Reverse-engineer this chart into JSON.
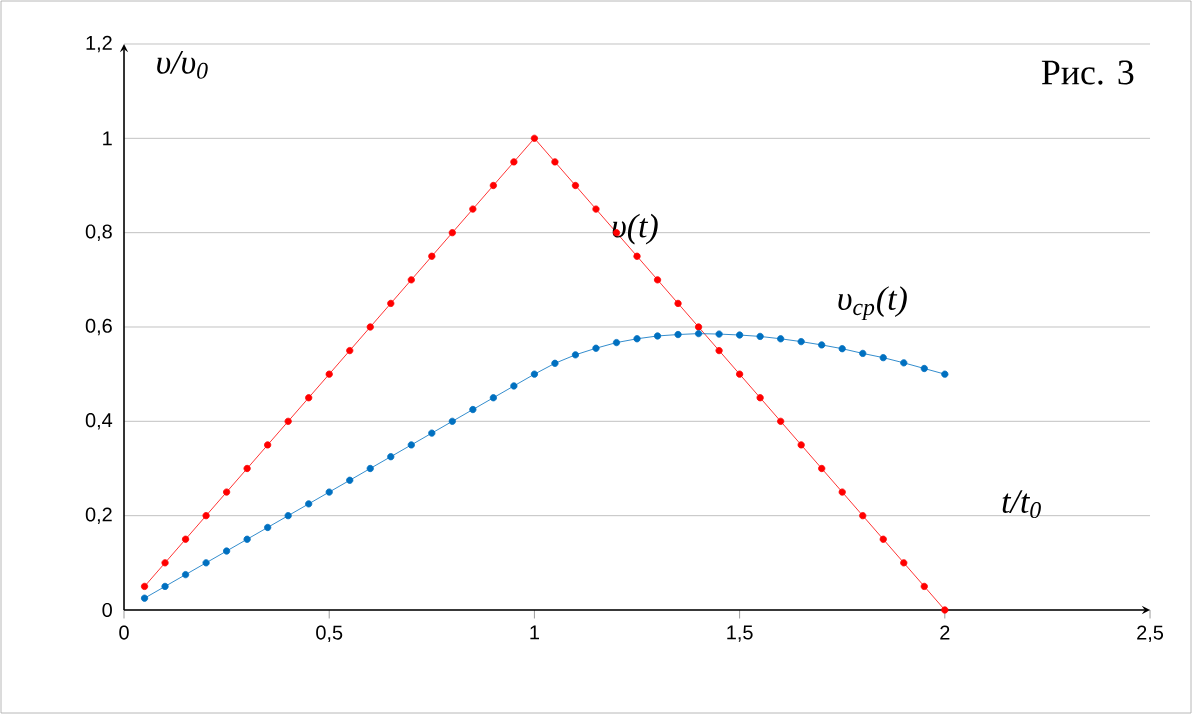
{
  "chart_data": {
    "type": "line",
    "xlabel": "t/t$_{0}$",
    "ylabel": "υ/υ$_{0}$",
    "annotations": [
      "Рис. 3"
    ],
    "xlim": [
      0,
      2.5
    ],
    "ylim": [
      0,
      1.2
    ],
    "xticks": [
      0,
      {
        "value": 0.5,
        "label": "0,5"
      },
      1,
      {
        "value": 1.5,
        "label": "1,5"
      },
      2,
      {
        "value": 2.5,
        "label": "2,5"
      }
    ],
    "yticks": [
      0,
      {
        "value": 0.2,
        "label": "0,2"
      },
      {
        "value": 0.4,
        "label": "0,4"
      },
      {
        "value": 0.6,
        "label": "0,6"
      },
      {
        "value": 0.8,
        "label": "0,8"
      },
      1,
      {
        "value": 1.2,
        "label": "1,2"
      }
    ],
    "grid": "y",
    "marker": "circle",
    "line_style": "solid",
    "x": [
      0.05,
      0.1,
      0.15,
      0.2,
      0.25,
      0.3,
      0.35,
      0.4,
      0.45,
      0.5,
      0.55,
      0.6,
      0.65,
      0.7,
      0.75,
      0.8,
      0.85,
      0.9,
      0.95,
      1.0,
      1.05,
      1.1,
      1.15,
      1.2,
      1.25,
      1.3,
      1.35,
      1.4,
      1.45,
      1.5,
      1.55,
      1.6,
      1.65,
      1.7,
      1.75,
      1.8,
      1.85,
      1.9,
      1.95,
      2.0
    ],
    "series": [
      {
        "name": "υ(t)",
        "color": "#ff0000",
        "values": [
          0.05,
          0.1,
          0.15,
          0.2,
          0.25,
          0.3,
          0.35,
          0.4,
          0.45,
          0.5,
          0.55,
          0.6,
          0.65,
          0.7,
          0.75,
          0.8,
          0.85,
          0.9,
          0.95,
          1.0,
          0.95,
          0.9,
          0.85,
          0.8,
          0.75,
          0.7,
          0.65,
          0.6,
          0.55,
          0.5,
          0.45,
          0.4,
          0.35,
          0.3,
          0.25,
          0.2,
          0.15,
          0.1,
          0.05,
          0.0
        ]
      },
      {
        "name": "υ$_{ср}$(t)",
        "color": "#0070c0",
        "values": [
          0.025,
          0.05,
          0.075,
          0.1,
          0.125,
          0.15,
          0.175,
          0.2,
          0.225,
          0.25,
          0.275,
          0.3,
          0.325,
          0.35,
          0.375,
          0.4,
          0.425,
          0.45,
          0.475,
          0.5,
          0.523,
          0.541,
          0.555,
          0.567,
          0.575,
          0.581,
          0.584,
          0.586,
          0.585,
          0.583,
          0.58,
          0.575,
          0.569,
          0.562,
          0.554,
          0.544,
          0.535,
          0.524,
          0.512,
          0.5
        ]
      }
    ]
  }
}
